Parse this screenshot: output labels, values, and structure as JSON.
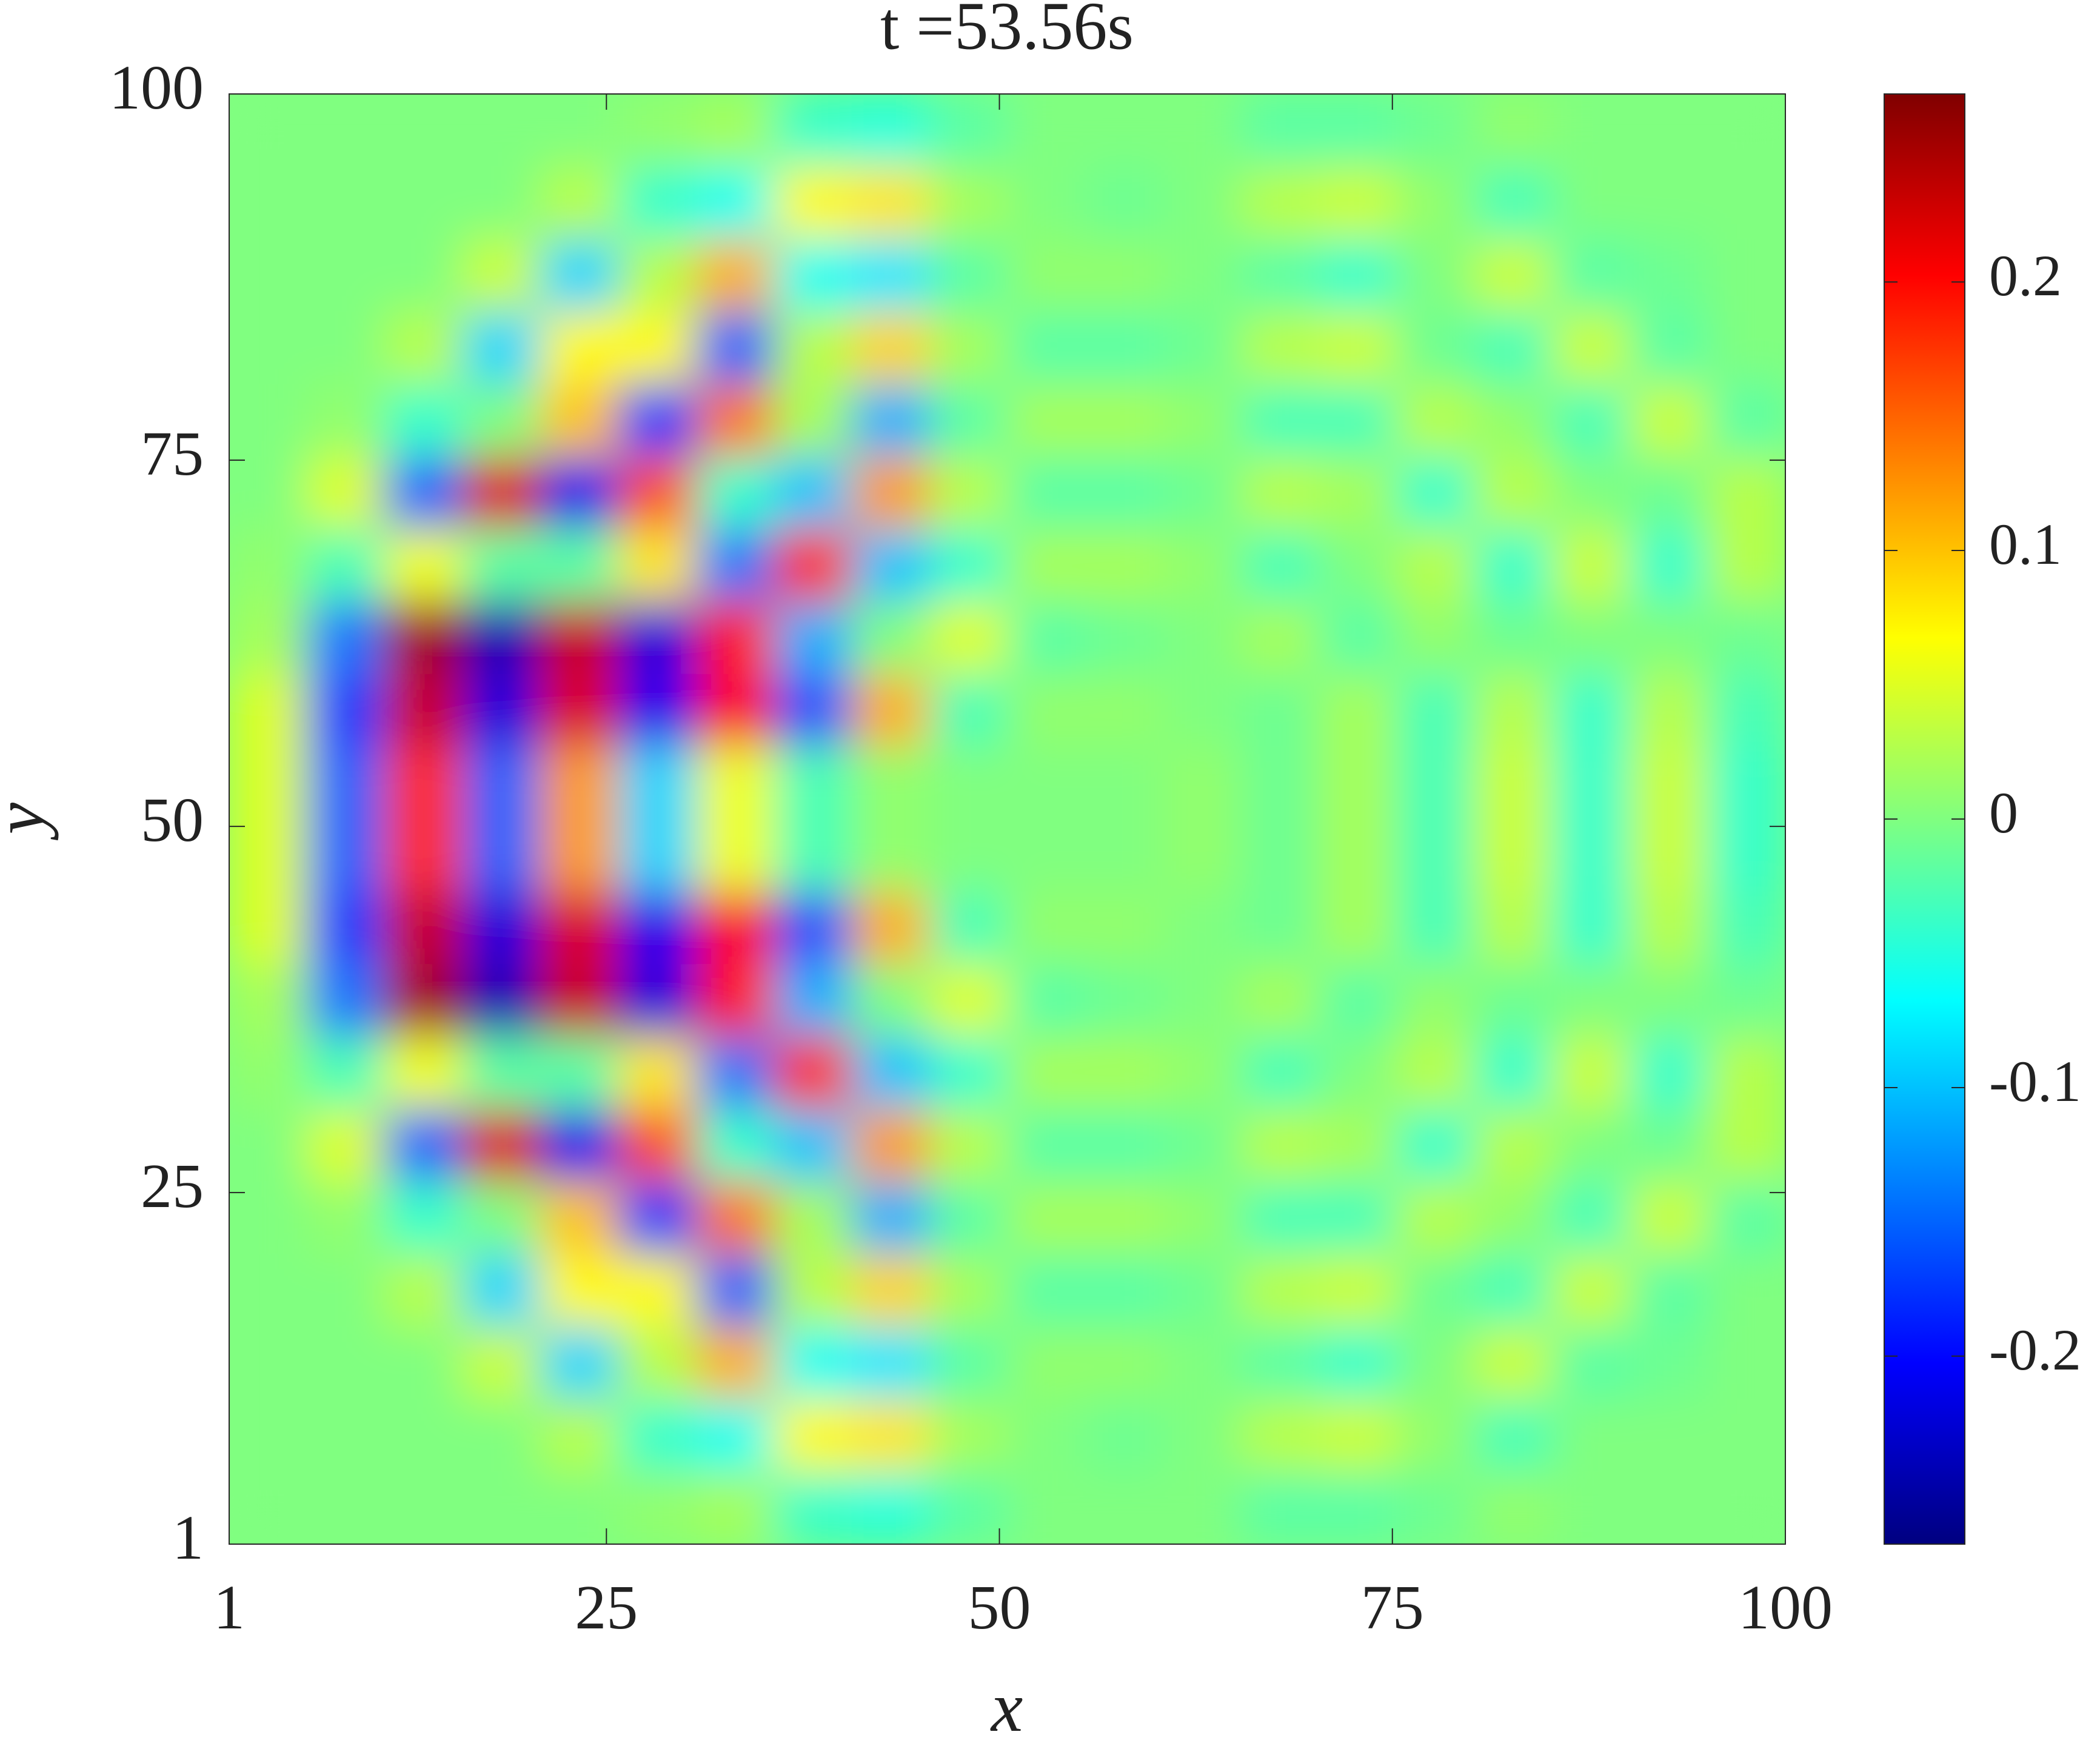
{
  "chart_data": {
    "type": "heatmap",
    "title": "t =53.56s",
    "x_label": "x",
    "y_label": "y",
    "xlim": [
      1,
      100
    ],
    "ylim": [
      1,
      100
    ],
    "xticks": [
      1,
      25,
      50,
      75,
      100
    ],
    "yticks": [
      1,
      25,
      50,
      75,
      100
    ],
    "colormap": "jet",
    "clim": [
      -0.27,
      0.27
    ],
    "cticks": [
      -0.2,
      -0.1,
      0,
      0.1,
      0.2
    ],
    "values": [
      [
        0,
        0,
        0,
        0,
        0,
        0.01,
        0.02,
        -0.04,
        -0.05,
        -0.02,
        0,
        0,
        0,
        -0.02,
        -0.02,
        -0.01,
        0.01,
        0,
        0,
        0
      ],
      [
        0,
        0,
        0,
        0,
        0.03,
        -0.04,
        -0.06,
        0.07,
        0.08,
        0.02,
        0,
        -0.01,
        0,
        0.03,
        0.04,
        0.01,
        -0.03,
        0,
        0,
        0
      ],
      [
        0,
        0,
        0,
        0.04,
        -0.09,
        0.03,
        0.11,
        -0.06,
        -0.08,
        -0.02,
        0.01,
        0.01,
        0,
        -0.02,
        -0.04,
        0,
        0.04,
        -0.02,
        -0.01,
        0
      ],
      [
        0,
        0,
        0.03,
        -0.09,
        0.07,
        0.07,
        -0.15,
        0.03,
        0.09,
        0.02,
        -0.02,
        -0.02,
        -0.01,
        0.03,
        0.04,
        -0.01,
        -0.03,
        0.04,
        -0.02,
        0
      ],
      [
        0,
        0.01,
        -0.04,
        0,
        0.1,
        -0.17,
        0.14,
        0.02,
        -0.11,
        -0.02,
        0.02,
        0.02,
        0.01,
        -0.03,
        -0.03,
        0.03,
        0.01,
        -0.03,
        0.04,
        -0.02
      ],
      [
        0,
        0.05,
        -0.15,
        0.22,
        -0.21,
        0.16,
        -0.04,
        -0.1,
        0.12,
        0.03,
        -0.02,
        -0.02,
        -0.01,
        0.03,
        0.02,
        -0.04,
        0.03,
        0,
        -0.01,
        0.03
      ],
      [
        0.01,
        -0.03,
        0.06,
        -0.02,
        -0.02,
        0.08,
        -0.14,
        0.18,
        -0.1,
        -0.04,
        0.02,
        0.02,
        0.01,
        -0.03,
        0,
        0.03,
        -0.04,
        0.04,
        -0.04,
        0.03
      ],
      [
        0.02,
        -0.14,
        0.25,
        -0.24,
        0.23,
        -0.22,
        0.19,
        -0.11,
        0,
        0.05,
        -0.02,
        -0.01,
        0,
        0.02,
        -0.02,
        0.01,
        -0.01,
        0,
        0,
        -0.01
      ],
      [
        0.05,
        -0.17,
        0.23,
        -0.22,
        0.22,
        -0.21,
        0.2,
        -0.16,
        0.11,
        -0.03,
        0.01,
        0.01,
        0,
        -0.01,
        0.02,
        -0.03,
        0.03,
        -0.04,
        0.03,
        -0.03
      ],
      [
        0.05,
        -0.15,
        0.18,
        -0.15,
        0.12,
        -0.09,
        0.06,
        -0.03,
        0.01,
        0,
        0,
        0,
        0.01,
        -0.01,
        0.02,
        -0.03,
        0.04,
        -0.04,
        0.04,
        -0.04
      ],
      [
        0.05,
        -0.15,
        0.18,
        -0.15,
        0.12,
        -0.09,
        0.06,
        -0.03,
        0.01,
        0,
        0,
        0,
        0.01,
        -0.01,
        0.02,
        -0.03,
        0.04,
        -0.04,
        0.04,
        -0.04
      ],
      [
        0.05,
        -0.17,
        0.23,
        -0.22,
        0.22,
        -0.21,
        0.2,
        -0.16,
        0.11,
        -0.03,
        0.01,
        0.01,
        0,
        -0.01,
        0.02,
        -0.03,
        0.03,
        -0.04,
        0.03,
        -0.03
      ],
      [
        0.02,
        -0.14,
        0.25,
        -0.24,
        0.23,
        -0.22,
        0.19,
        -0.11,
        0,
        0.05,
        -0.02,
        -0.01,
        0,
        0.02,
        -0.02,
        0.01,
        -0.01,
        0,
        0,
        -0.01
      ],
      [
        0.01,
        -0.03,
        0.06,
        -0.02,
        -0.02,
        0.08,
        -0.14,
        0.18,
        -0.1,
        -0.04,
        0.02,
        0.02,
        0.01,
        -0.03,
        0,
        0.03,
        -0.04,
        0.04,
        -0.04,
        0.03
      ],
      [
        0,
        0.05,
        -0.15,
        0.22,
        -0.21,
        0.16,
        -0.04,
        -0.1,
        0.12,
        0.03,
        -0.02,
        -0.02,
        -0.01,
        0.03,
        0.02,
        -0.04,
        0.03,
        0,
        -0.01,
        0.03
      ],
      [
        0,
        0.01,
        -0.04,
        0,
        0.1,
        -0.17,
        0.14,
        0.02,
        -0.11,
        -0.02,
        0.02,
        0.02,
        0.01,
        -0.03,
        -0.03,
        0.03,
        0.01,
        -0.03,
        0.04,
        -0.02
      ],
      [
        0,
        0,
        0.03,
        -0.09,
        0.07,
        0.07,
        -0.15,
        0.03,
        0.09,
        0.02,
        -0.02,
        -0.02,
        -0.01,
        0.03,
        0.04,
        -0.01,
        -0.03,
        0.04,
        -0.02,
        0
      ],
      [
        0,
        0,
        0,
        0.04,
        -0.09,
        0.03,
        0.11,
        -0.06,
        -0.08,
        -0.02,
        0.01,
        0.01,
        0,
        -0.02,
        -0.04,
        0,
        0.04,
        -0.02,
        -0.01,
        0
      ],
      [
        0,
        0,
        0,
        0,
        0.03,
        -0.04,
        -0.06,
        0.07,
        0.08,
        0.02,
        0,
        -0.01,
        0,
        0.03,
        0.04,
        0.01,
        -0.03,
        0,
        0,
        0
      ],
      [
        0,
        0,
        0,
        0,
        0,
        0.01,
        0.02,
        -0.04,
        -0.05,
        -0.02,
        0,
        0,
        0,
        -0.02,
        -0.02,
        -0.01,
        0.01,
        0,
        0,
        0
      ]
    ]
  }
}
